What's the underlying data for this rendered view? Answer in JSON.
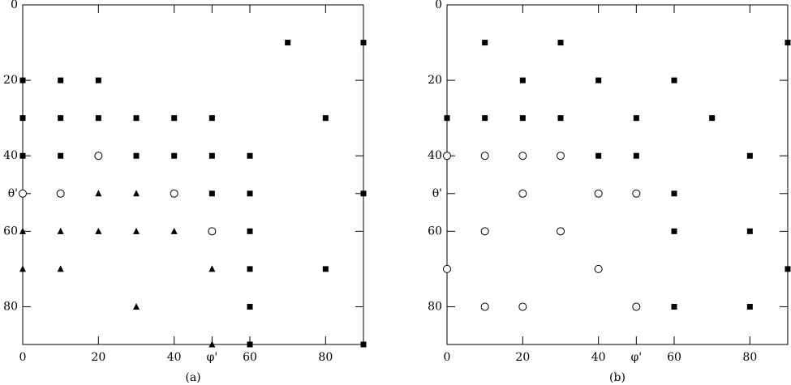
{
  "chart_data": [
    {
      "type": "scatter",
      "caption": "(a)",
      "xlim": [
        0,
        90
      ],
      "ylim": [
        90,
        0
      ],
      "xticks": [
        0,
        20,
        40,
        {
          "value": 50,
          "label": "φ'"
        },
        60,
        80
      ],
      "yticks": [
        0,
        20,
        40,
        {
          "value": 50,
          "label": "θ'"
        },
        60,
        80
      ],
      "series": [
        {
          "marker": "square",
          "color": "#000000",
          "x": [
            70,
            90,
            0,
            10,
            20,
            0,
            10,
            20,
            30,
            40,
            50,
            80,
            0,
            10,
            30,
            40,
            50,
            60,
            50,
            60,
            90,
            60,
            60,
            80,
            60,
            60,
            90
          ],
          "y": [
            10,
            10,
            20,
            20,
            20,
            30,
            30,
            30,
            30,
            30,
            30,
            30,
            40,
            40,
            40,
            40,
            40,
            40,
            50,
            50,
            50,
            60,
            70,
            70,
            80,
            90,
            90
          ]
        },
        {
          "marker": "circle",
          "color": "#000000",
          "x": [
            20,
            0,
            10,
            40,
            50
          ],
          "y": [
            40,
            50,
            50,
            50,
            60
          ]
        },
        {
          "marker": "triangle",
          "color": "#000000",
          "x": [
            20,
            30,
            0,
            10,
            20,
            30,
            40,
            0,
            10,
            50,
            30,
            50
          ],
          "y": [
            50,
            50,
            60,
            60,
            60,
            60,
            60,
            70,
            70,
            70,
            80,
            90
          ]
        }
      ]
    },
    {
      "type": "scatter",
      "caption": "(b)",
      "xlim": [
        0,
        90
      ],
      "ylim": [
        90,
        0
      ],
      "xticks": [
        0,
        20,
        40,
        {
          "value": 50,
          "label": "φ'"
        },
        60,
        80
      ],
      "yticks": [
        0,
        20,
        40,
        {
          "value": 50,
          "label": "θ'"
        },
        60,
        80
      ],
      "series": [
        {
          "marker": "square",
          "color": "#000000",
          "x": [
            10,
            30,
            90,
            20,
            40,
            60,
            0,
            10,
            20,
            30,
            50,
            70,
            40,
            50,
            80,
            60,
            60,
            80,
            90,
            60,
            80
          ],
          "y": [
            10,
            10,
            10,
            20,
            20,
            20,
            30,
            30,
            30,
            30,
            30,
            30,
            40,
            40,
            40,
            50,
            60,
            60,
            70,
            80,
            80
          ]
        },
        {
          "marker": "circle",
          "color": "#000000",
          "x": [
            0,
            10,
            20,
            30,
            20,
            40,
            50,
            10,
            30,
            40,
            0,
            10,
            20,
            50
          ],
          "y": [
            40,
            40,
            40,
            40,
            50,
            50,
            50,
            60,
            60,
            70,
            70,
            80,
            80,
            80
          ]
        }
      ]
    }
  ]
}
